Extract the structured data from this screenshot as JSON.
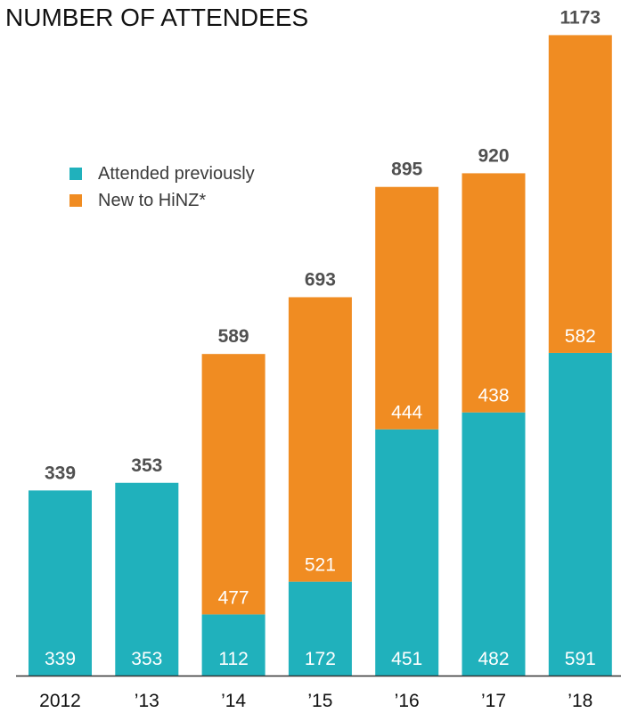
{
  "title": "NUMBER OF ATTENDEES",
  "colors": {
    "previous": "#20B1BC",
    "new": "#F08C22",
    "axis": "#333333"
  },
  "legend": [
    {
      "label": "Attended previously",
      "color": "#20B1BC"
    },
    {
      "label": "New to HiNZ*",
      "color": "#F08C22"
    }
  ],
  "chart_data": {
    "type": "bar",
    "stacked": true,
    "categories": [
      "2012",
      "’13",
      "’14",
      "’15",
      "’16",
      "’17",
      "’18"
    ],
    "series": [
      {
        "name": "Attended previously",
        "values": [
          339,
          353,
          112,
          172,
          451,
          482,
          591
        ]
      },
      {
        "name": "New to HiNZ*",
        "values": [
          0,
          0,
          477,
          521,
          444,
          438,
          582
        ]
      }
    ],
    "totals": [
      339,
      353,
      589,
      693,
      895,
      920,
      1173
    ],
    "segment_labels": {
      "Attended previously": [
        "339",
        "353",
        "112",
        "172",
        "451",
        "482",
        "591"
      ],
      "New to HiNZ*": [
        "",
        "",
        "477",
        "521",
        "444",
        "438",
        "582"
      ]
    },
    "title": "NUMBER OF ATTENDEES",
    "xlabel": "",
    "ylabel": "",
    "ylim": [
      0,
      1200
    ],
    "grid": false,
    "legend_position": "top-left"
  }
}
